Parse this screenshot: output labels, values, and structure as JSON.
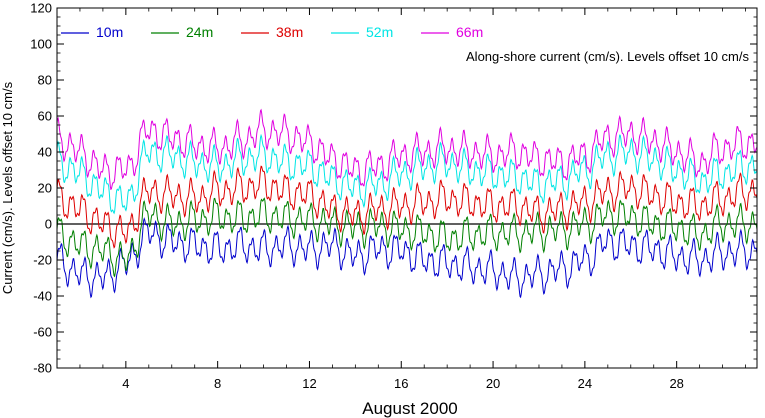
{
  "chart_data": {
    "type": "line",
    "title": "",
    "xlabel": "August 2000",
    "ylabel": "Current (cm/s). Levels offset 10 cm/s",
    "annotation": "Along-shore current (cm/s). Levels offset 10 cm/s",
    "xlim": [
      1,
      31.5
    ],
    "ylim": [
      -80,
      120
    ],
    "x_ticks": [
      4,
      8,
      12,
      16,
      20,
      24,
      28
    ],
    "x_tick_labels": [
      "4",
      "8",
      "12",
      "16",
      "20",
      "24",
      "28"
    ],
    "y_ticks": [
      -80,
      -60,
      -40,
      -20,
      0,
      20,
      40,
      60,
      80,
      100,
      120
    ],
    "y_tick_labels": [
      "-80",
      "-60",
      "-40",
      "-20",
      "0",
      "20",
      "40",
      "60",
      "80",
      "100",
      "120"
    ],
    "zero_line": true,
    "grid": false,
    "legend_placement": "top-left",
    "x_nodes": [
      1,
      2,
      3,
      4,
      5,
      6,
      7,
      8,
      9,
      10,
      11,
      12,
      13,
      14,
      15,
      16,
      17,
      18,
      19,
      20,
      21,
      22,
      23,
      24,
      25,
      26,
      27,
      28,
      29,
      30,
      31
    ],
    "series": [
      {
        "name": "10m",
        "color": "#0000cc",
        "values": [
          -20,
          -28,
          -30,
          -22,
          -5,
          -10,
          -12,
          -14,
          -12,
          -14,
          -12,
          -14,
          -12,
          -18,
          -14,
          -15,
          -20,
          -22,
          -24,
          -26,
          -30,
          -28,
          -25,
          -20,
          -10,
          -12,
          -14,
          -18,
          -20,
          -16,
          -15
        ]
      },
      {
        "name": "24m",
        "color": "#008000",
        "values": [
          -5,
          -12,
          -15,
          -20,
          5,
          0,
          2,
          4,
          3,
          5,
          3,
          2,
          0,
          -2,
          -1,
          -3,
          -5,
          -8,
          -6,
          -5,
          -5,
          -4,
          -3,
          0,
          5,
          4,
          0,
          -2,
          -6,
          0,
          0
        ]
      },
      {
        "name": "38m",
        "color": "#dd0000",
        "values": [
          15,
          8,
          0,
          -5,
          18,
          16,
          14,
          18,
          20,
          22,
          18,
          16,
          8,
          5,
          8,
          10,
          12,
          14,
          12,
          10,
          10,
          6,
          8,
          12,
          18,
          20,
          16,
          12,
          10,
          14,
          18
        ]
      },
      {
        "name": "52m",
        "color": "#00e5e5",
        "values": [
          35,
          28,
          18,
          12,
          40,
          38,
          34,
          32,
          36,
          38,
          34,
          32,
          25,
          20,
          22,
          28,
          32,
          34,
          30,
          28,
          26,
          22,
          24,
          30,
          38,
          40,
          36,
          30,
          24,
          28,
          32
        ]
      },
      {
        "name": "66m",
        "color": "#e000e0",
        "values": [
          48,
          40,
          30,
          30,
          52,
          48,
          44,
          42,
          46,
          52,
          50,
          45,
          36,
          30,
          32,
          38,
          40,
          42,
          40,
          38,
          40,
          36,
          34,
          38,
          48,
          50,
          46,
          40,
          34,
          42,
          45
        ]
      }
    ]
  }
}
